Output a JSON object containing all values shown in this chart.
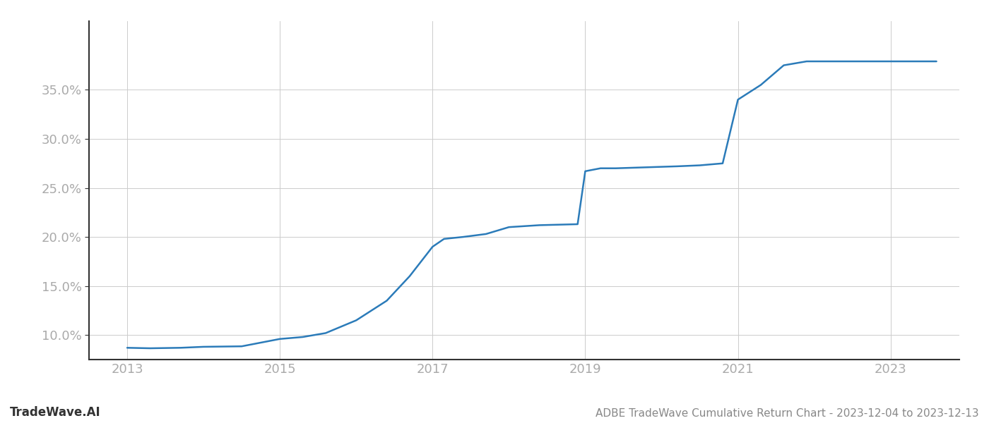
{
  "title": "ADBE TradeWave Cumulative Return Chart - 2023-12-04 to 2023-12-13",
  "watermark": "TradeWave.AI",
  "line_color": "#2b7bb9",
  "background_color": "#ffffff",
  "grid_color": "#cccccc",
  "x_values": [
    2013.0,
    2013.3,
    2013.7,
    2014.0,
    2014.5,
    2015.0,
    2015.3,
    2015.6,
    2016.0,
    2016.4,
    2016.7,
    2017.0,
    2017.15,
    2017.4,
    2017.7,
    2018.0,
    2018.4,
    2018.9,
    2019.0,
    2019.2,
    2019.4,
    2019.6,
    2019.8,
    2020.0,
    2020.2,
    2020.5,
    2020.8,
    2021.0,
    2021.3,
    2021.6,
    2021.9,
    2022.0,
    2022.3,
    2022.6,
    2022.9,
    2023.0,
    2023.3,
    2023.6
  ],
  "y_values": [
    8.7,
    8.65,
    8.7,
    8.8,
    8.85,
    9.6,
    9.8,
    10.2,
    11.5,
    13.5,
    16.0,
    19.0,
    19.8,
    20.0,
    20.3,
    21.0,
    21.2,
    21.3,
    26.7,
    27.0,
    27.0,
    27.05,
    27.1,
    27.15,
    27.2,
    27.3,
    27.5,
    34.0,
    35.5,
    37.5,
    37.9,
    37.9,
    37.9,
    37.9,
    37.9,
    37.9,
    37.9,
    37.9
  ],
  "xlim": [
    2012.5,
    2023.9
  ],
  "ylim": [
    7.5,
    42.0
  ],
  "yticks": [
    10.0,
    15.0,
    20.0,
    25.0,
    30.0,
    35.0
  ],
  "xticks": [
    2013,
    2015,
    2017,
    2019,
    2021,
    2023
  ],
  "line_width": 1.8,
  "tick_label_color": "#aaaaaa",
  "tick_label_fontsize": 13,
  "title_fontsize": 11,
  "watermark_fontsize": 12
}
